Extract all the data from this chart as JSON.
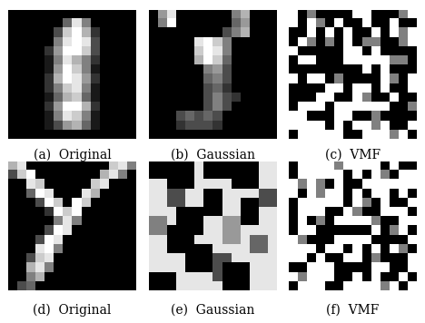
{
  "captions": [
    "(a)  Original",
    "(b)  Gaussian",
    "(c)  VMF",
    "(d)  Original",
    "(e)  Gaussian",
    "(f)  VMF"
  ],
  "caption_fontsize": 10,
  "layout": {
    "rows": 2,
    "cols": 3
  }
}
